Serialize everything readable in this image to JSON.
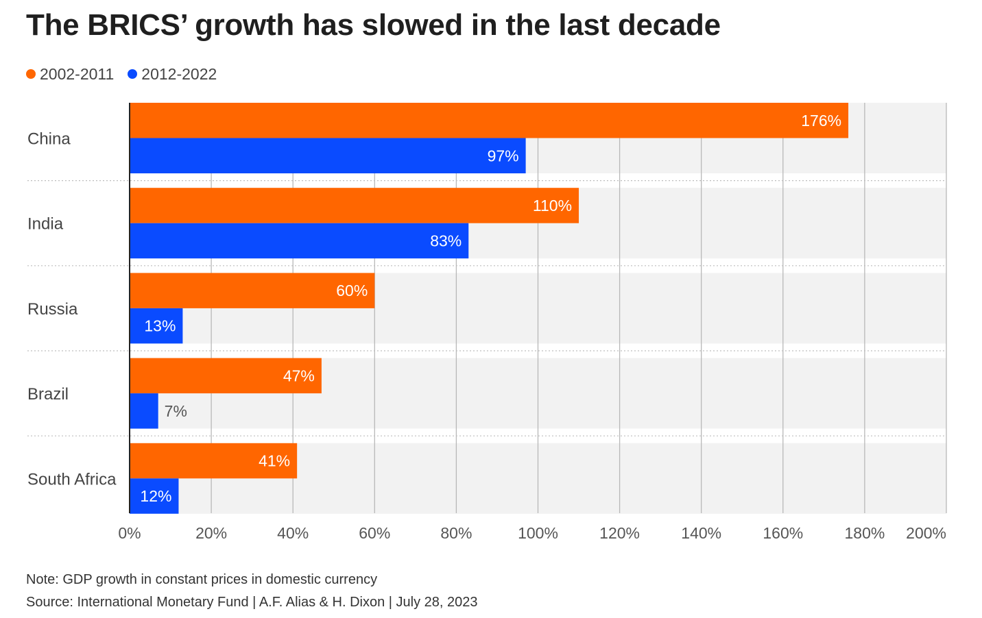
{
  "chart_data": {
    "type": "bar",
    "orientation": "horizontal",
    "title": "The BRICS’ growth has slowed in the last decade",
    "categories": [
      "China",
      "India",
      "Russia",
      "Brazil",
      "South Africa"
    ],
    "series": [
      {
        "name": "2002-2011",
        "color": "#ff6600",
        "values": [
          176,
          110,
          60,
          47,
          41
        ]
      },
      {
        "name": "2012-2022",
        "color": "#0a4bff",
        "values": [
          97,
          83,
          13,
          7,
          12
        ]
      }
    ],
    "value_suffix": "%",
    "xlim": [
      0,
      200
    ],
    "xticks": [
      0,
      20,
      40,
      60,
      80,
      100,
      120,
      140,
      160,
      180,
      200
    ],
    "xtick_labels": [
      "0%",
      "20%",
      "40%",
      "60%",
      "80%",
      "100%",
      "120%",
      "140%",
      "160%",
      "180%",
      "200%"
    ],
    "grid": true,
    "legend_position": "top-left",
    "note": "Note: GDP growth in constant prices in domestic currency",
    "source": "Source: International Monetary Fund | A.F. Alias & H. Dixon | July 28, 2023"
  }
}
